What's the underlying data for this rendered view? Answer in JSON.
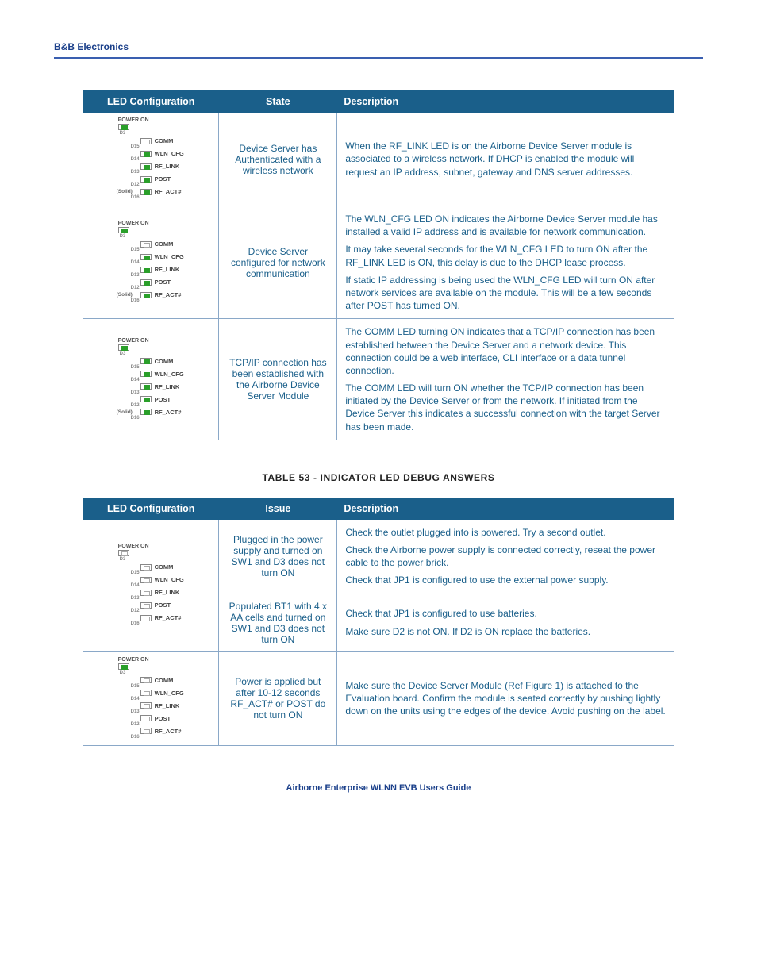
{
  "header": "B&B Electronics",
  "footer": "Airborne Enterprise WLNN EVB Users Guide",
  "table1": {
    "headers": [
      "LED Configuration",
      "State",
      "Description"
    ],
    "rows": [
      {
        "leds": {
          "power_label": "POWER ON",
          "power": "grn",
          "items": [
            {
              "state": "off",
              "label": "COMM",
              "d": "D15"
            },
            {
              "state": "grn",
              "label": "WLN_CFG",
              "d": "D14"
            },
            {
              "state": "grn",
              "label": "RF_LINK",
              "d": "D13"
            },
            {
              "state": "grn",
              "label": "POST",
              "d": "D12"
            },
            {
              "state": "grn",
              "label": "RF_ACT#",
              "d": "D16",
              "solid": "(Solid)"
            }
          ],
          "d_power": "D3"
        },
        "state": "Device Server has Authenticated with a wireless network",
        "desc": [
          "When the RF_LINK LED is on the Airborne Device Server module is associated to a wireless network. If DHCP is enabled the module will request an IP address, subnet, gateway and DNS server addresses."
        ]
      },
      {
        "leds": {
          "power_label": "POWER ON",
          "power": "grn",
          "items": [
            {
              "state": "off",
              "label": "COMM",
              "d": "D15"
            },
            {
              "state": "grn",
              "label": "WLN_CFG",
              "d": "D14"
            },
            {
              "state": "grn",
              "label": "RF_LINK",
              "d": "D13"
            },
            {
              "state": "grn",
              "label": "POST",
              "d": "D12"
            },
            {
              "state": "grn",
              "label": "RF_ACT#",
              "d": "D16",
              "solid": "(Solid)"
            }
          ],
          "d_power": "D3"
        },
        "state": "Device Server configured for network communication",
        "desc": [
          "The WLN_CFG LED ON indicates the Airborne Device Server module has installed a valid IP address and is available for network communication.",
          "It may take several seconds for the WLN_CFG LED to turn ON after the RF_LINK LED is ON, this delay is due to the DHCP lease process.",
          "If static IP addressing is being used the WLN_CFG LED will turn ON after network services are available on the module. This will be a few seconds after POST has turned ON."
        ]
      },
      {
        "leds": {
          "power_label": "POWER ON",
          "power": "grn",
          "items": [
            {
              "state": "grn",
              "label": "COMM",
              "d": "D15"
            },
            {
              "state": "grn",
              "label": "WLN_CFG",
              "d": "D14"
            },
            {
              "state": "grn",
              "label": "RF_LINK",
              "d": "D13"
            },
            {
              "state": "grn",
              "label": "POST",
              "d": "D12"
            },
            {
              "state": "grn",
              "label": "RF_ACT#",
              "d": "D16",
              "solid": "(Solid)"
            }
          ],
          "d_power": "D3"
        },
        "state": "TCP/IP connection has been established with the Airborne Device Server Module",
        "desc": [
          "The COMM LED turning ON indicates that a TCP/IP connection has been established between the Device Server and a network device. This connection could be a web interface, CLI interface or a data tunnel connection.",
          "The COMM LED will turn ON whether the TCP/IP connection has been initiated by the Device Server or from the network. If initiated from the Device Server this indicates a successful connection with the target Server has been made."
        ]
      }
    ]
  },
  "caption2": "TABLE 53  - INDICATOR LED DEBUG ANSWERS",
  "table2": {
    "headers": [
      "LED Configuration",
      "Issue",
      "Description"
    ],
    "rows": [
      {
        "leds": {
          "power_label": "POWER ON",
          "power": "off",
          "items": [
            {
              "state": "off",
              "label": "COMM",
              "d": "D15"
            },
            {
              "state": "off",
              "label": "WLN_CFG",
              "d": "D14"
            },
            {
              "state": "off",
              "label": "RF_LINK",
              "d": "D13"
            },
            {
              "state": "off",
              "label": "POST",
              "d": "D12"
            },
            {
              "state": "off",
              "label": "RF_ACT#",
              "d": "D16"
            }
          ],
          "d_power": "D3"
        },
        "sub": [
          {
            "issue": "Plugged in the power supply and turned on SW1 and D3 does not turn ON",
            "desc": [
              "Check the outlet plugged into is powered. Try a second outlet.",
              "Check the Airborne power supply is connected correctly, reseat the power cable to the power brick.",
              "Check that JP1 is configured to use the external power supply."
            ]
          },
          {
            "issue": "Populated BT1 with 4 x AA cells and turned on SW1 and D3 does not turn ON",
            "desc": [
              "Check that JP1 is configured to use batteries.",
              "Make sure D2 is not ON. If D2 is ON replace the batteries."
            ]
          }
        ]
      },
      {
        "leds": {
          "power_label": "POWER ON",
          "power": "grn",
          "items": [
            {
              "state": "off",
              "label": "COMM",
              "d": "D15"
            },
            {
              "state": "off",
              "label": "WLN_CFG",
              "d": "D14"
            },
            {
              "state": "off",
              "label": "RF_LINK",
              "d": "D13"
            },
            {
              "state": "off",
              "label": "POST",
              "d": "D12"
            },
            {
              "state": "off",
              "label": "RF_ACT#",
              "d": "D16"
            }
          ],
          "d_power": "D3"
        },
        "state": "Power is applied but after 10-12 seconds RF_ACT# or POST do not turn ON",
        "desc": [
          "Make sure the Device Server Module (Ref Figure 1) is attached to the Evaluation board. Confirm the module is seated correctly by pushing lightly down on the units using the edges of the device. Avoid pushing on the label."
        ]
      }
    ]
  }
}
